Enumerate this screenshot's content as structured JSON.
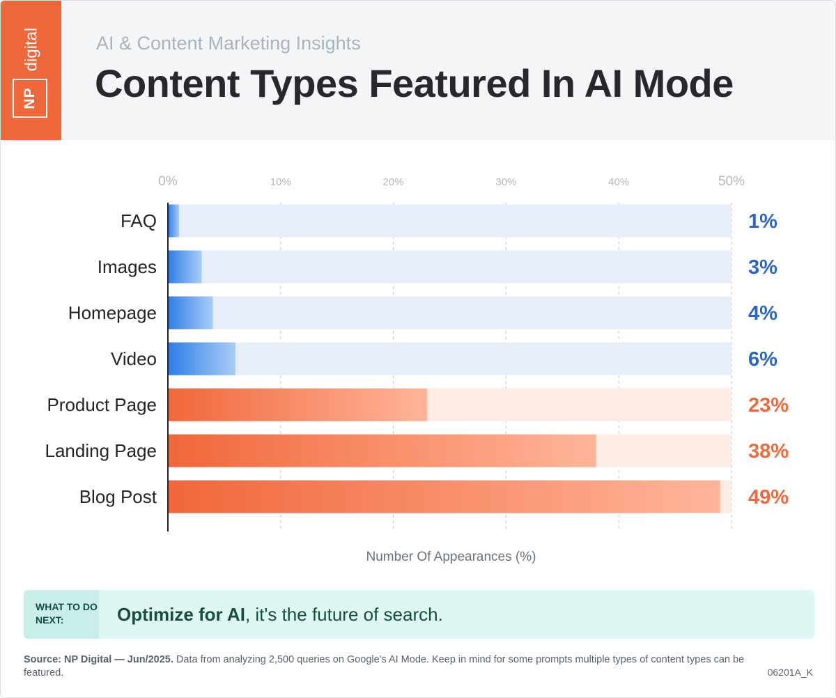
{
  "brand": {
    "logo_text_top": "digital",
    "logo_text_bottom": "NP",
    "accent": "#f0673a"
  },
  "header": {
    "subtitle": "AI & Content Marketing Insights",
    "title": "Content Types Featured In AI Mode"
  },
  "chart_data": {
    "type": "bar",
    "orientation": "horizontal",
    "categories": [
      "FAQ",
      "Images",
      "Homepage",
      "Video",
      "Product Page",
      "Landing Page",
      "Blog Post"
    ],
    "values": [
      1,
      3,
      4,
      6,
      23,
      38,
      49
    ],
    "value_labels": [
      "1%",
      "3%",
      "4%",
      "6%",
      "23%",
      "38%",
      "49%"
    ],
    "xlim": [
      0,
      50
    ],
    "xticks": [
      "0%",
      "10%",
      "20%",
      "30%",
      "40%",
      "50%"
    ],
    "xlabel": "Number Of Appearances (%)",
    "colors": {
      "low_group": "#2f7ee6",
      "low_label": "#2a66c4",
      "high_group": "#f0673a",
      "high_label": "#ee6a3c"
    },
    "highlight_threshold": 20
  },
  "callout": {
    "tag": "WHAT TO DO NEXT:",
    "bold": "Optimize for AI",
    "rest": ", it's the future of search."
  },
  "footer": {
    "source_bold": "Source: NP Digital — Jun/2025.",
    "source_text": " Data from analyzing 2,500 queries on Google's AI Mode. Keep in mind for some prompts multiple types of content types can be featured.",
    "code": "06201A_K"
  }
}
